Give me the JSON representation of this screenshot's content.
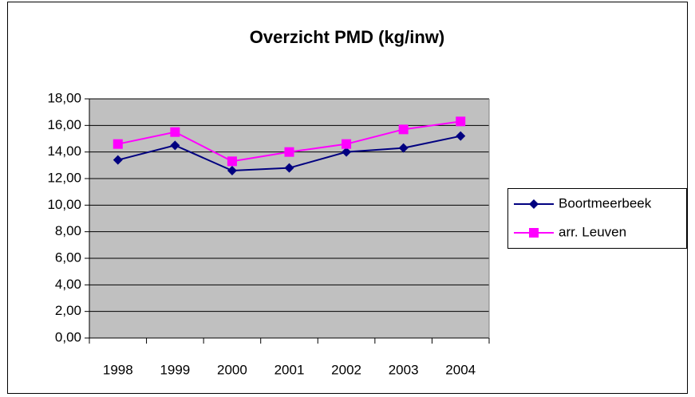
{
  "chart_data": {
    "type": "line",
    "title": "Overzicht PMD (kg/inw)",
    "categories": [
      "1998",
      "1999",
      "2000",
      "2001",
      "2002",
      "2003",
      "2004"
    ],
    "series": [
      {
        "name": "Boortmeerbeek",
        "color": "#000080",
        "marker": "diamond",
        "values": [
          13.4,
          14.5,
          12.6,
          12.8,
          14.0,
          14.3,
          15.2
        ]
      },
      {
        "name": "arr. Leuven",
        "color": "#ff00ff",
        "marker": "square",
        "values": [
          14.6,
          15.5,
          13.3,
          14.0,
          14.6,
          15.7,
          16.3
        ]
      }
    ],
    "ylim": [
      0,
      18
    ],
    "yticks": [
      {
        "value": 0,
        "label": "0,00"
      },
      {
        "value": 2,
        "label": "2,00"
      },
      {
        "value": 4,
        "label": "4,00"
      },
      {
        "value": 6,
        "label": "6,00"
      },
      {
        "value": 8,
        "label": "8,00"
      },
      {
        "value": 10,
        "label": "10,00"
      },
      {
        "value": 12,
        "label": "12,00"
      },
      {
        "value": 14,
        "label": "14,00"
      },
      {
        "value": 16,
        "label": "16,00"
      },
      {
        "value": 18,
        "label": "18,00"
      }
    ],
    "grid": true,
    "plot_background": "#c0c0c0",
    "legend": "right"
  }
}
